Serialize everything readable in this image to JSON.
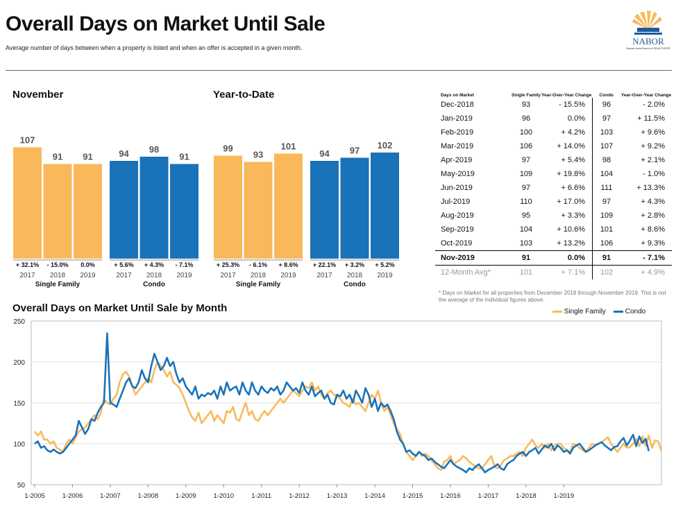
{
  "header": {
    "title": "Overall Days on Market Until Sale",
    "subtitle": "Average number of days between when a property is listed and when an offer is accepted in a given month.",
    "logo_text": "NABOR",
    "logo_sub": "Naples Area Board of REALTORS®"
  },
  "sections": {
    "november": "November",
    "ytd": "Year-to-Date",
    "monthly": "Overall Days on Market Until Sale by Month"
  },
  "colors": {
    "single_family": "#F9B95A",
    "condo": "#1A72B8"
  },
  "chart_data": [
    {
      "type": "bar",
      "title": "November",
      "groups": [
        {
          "name": "Single Family",
          "categories": [
            "2017",
            "2018",
            "2019"
          ],
          "values": [
            107,
            91,
            91
          ],
          "changes": [
            "+ 32.1%",
            "- 15.0%",
            "0.0%"
          ]
        },
        {
          "name": "Condo",
          "categories": [
            "2017",
            "2018",
            "2019"
          ],
          "values": [
            94,
            98,
            91
          ],
          "changes": [
            "+ 5.6%",
            "+ 4.3%",
            "- 7.1%"
          ]
        }
      ]
    },
    {
      "type": "bar",
      "title": "Year-to-Date",
      "groups": [
        {
          "name": "Single Family",
          "categories": [
            "2017",
            "2018",
            "2019"
          ],
          "values": [
            99,
            93,
            101
          ],
          "changes": [
            "+ 25.3%",
            "- 6.1%",
            "+ 8.6%"
          ]
        },
        {
          "name": "Condo",
          "categories": [
            "2017",
            "2018",
            "2019"
          ],
          "values": [
            94,
            97,
            102
          ],
          "changes": [
            "+ 22.1%",
            "+ 3.2%",
            "+ 5.2%"
          ]
        }
      ]
    },
    {
      "type": "table",
      "columns": [
        "Days on Market",
        "Single Family",
        "Year-Over-Year Change",
        "Condo",
        "Year-Over-Year Change"
      ],
      "rows": [
        [
          "Dec-2018",
          "93",
          "- 15.5%",
          "96",
          "- 2.0%"
        ],
        [
          "Jan-2019",
          "96",
          "0.0%",
          "97",
          "+ 11.5%"
        ],
        [
          "Feb-2019",
          "100",
          "+ 4.2%",
          "103",
          "+ 9.6%"
        ],
        [
          "Mar-2019",
          "106",
          "+ 14.0%",
          "107",
          "+ 9.2%"
        ],
        [
          "Apr-2019",
          "97",
          "+ 5.4%",
          "98",
          "+ 2.1%"
        ],
        [
          "May-2019",
          "109",
          "+ 19.8%",
          "104",
          "- 1.0%"
        ],
        [
          "Jun-2019",
          "97",
          "+ 6.6%",
          "111",
          "+ 13.3%"
        ],
        [
          "Jul-2019",
          "110",
          "+ 17.0%",
          "97",
          "+ 4.3%"
        ],
        [
          "Aug-2019",
          "95",
          "+ 3.3%",
          "109",
          "+ 2.8%"
        ],
        [
          "Sep-2019",
          "104",
          "+ 10.6%",
          "101",
          "+ 8.6%"
        ],
        [
          "Oct-2019",
          "103",
          "+ 13.2%",
          "106",
          "+ 9.3%"
        ]
      ],
      "current": [
        "Nov-2019",
        "91",
        "0.0%",
        "91",
        "- 7.1%"
      ],
      "average": [
        "12-Month Avg*",
        "101",
        "+ 7.1%",
        "102",
        "+ 4.9%"
      ],
      "footnote": "* Days on Market for all properties from December 2018 through November 2019. This is not the average of the individual figures above."
    },
    {
      "type": "line",
      "title": "Overall Days on Market Until Sale by Month",
      "ylim": [
        50,
        250
      ],
      "yticks": [
        50,
        100,
        150,
        200,
        250
      ],
      "xticks": [
        "1-2005",
        "1-2006",
        "1-2007",
        "1-2008",
        "1-2009",
        "1-2010",
        "1-2011",
        "1-2012",
        "1-2013",
        "1-2014",
        "1-2015",
        "1-2016",
        "1-2017",
        "1-2018",
        "1-2019"
      ],
      "series": [
        {
          "name": "Single Family",
          "values": [
            115,
            110,
            115,
            105,
            105,
            100,
            103,
            95,
            93,
            90,
            100,
            105,
            100,
            108,
            115,
            118,
            120,
            125,
            130,
            135,
            130,
            138,
            155,
            150,
            148,
            155,
            160,
            175,
            185,
            188,
            182,
            170,
            160,
            165,
            170,
            175,
            180,
            175,
            190,
            200,
            195,
            190,
            182,
            188,
            175,
            172,
            168,
            160,
            150,
            140,
            132,
            128,
            138,
            125,
            130,
            135,
            140,
            128,
            135,
            130,
            125,
            140,
            138,
            145,
            130,
            128,
            140,
            150,
            135,
            140,
            130,
            128,
            135,
            140,
            135,
            140,
            145,
            150,
            155,
            150,
            155,
            160,
            165,
            162,
            158,
            165,
            170,
            168,
            175,
            165,
            170,
            160,
            155,
            162,
            165,
            160,
            158,
            155,
            150,
            148,
            145,
            155,
            148,
            150,
            145,
            140,
            150,
            160,
            155,
            165,
            150,
            140,
            145,
            135,
            125,
            118,
            112,
            100,
            90,
            85,
            80,
            85,
            90,
            85,
            88,
            85,
            80,
            75,
            70,
            68,
            78,
            80,
            85,
            75,
            78,
            80,
            85,
            82,
            78,
            75,
            72,
            70,
            70,
            75,
            80,
            85,
            72,
            70,
            74,
            80,
            82,
            85,
            85,
            88,
            90,
            85,
            95,
            100,
            105,
            98,
            95,
            100,
            95,
            100,
            92,
            98,
            100,
            100,
            95,
            92,
            90,
            100,
            98,
            95,
            92,
            90,
            95,
            100,
            98,
            100,
            102,
            105,
            108,
            100,
            95,
            90,
            95,
            100,
            95,
            96,
            100,
            106,
            97,
            109,
            97,
            110,
            95,
            104,
            103,
            91
          ]
        },
        {
          "name": "Condo",
          "values": [
            100,
            103,
            95,
            97,
            92,
            90,
            93,
            90,
            88,
            90,
            95,
            100,
            105,
            110,
            128,
            120,
            112,
            118,
            130,
            128,
            138,
            145,
            150,
            235,
            150,
            148,
            145,
            155,
            165,
            175,
            180,
            170,
            168,
            175,
            190,
            180,
            175,
            195,
            210,
            200,
            190,
            195,
            205,
            195,
            200,
            185,
            175,
            180,
            170,
            165,
            160,
            170,
            155,
            160,
            158,
            162,
            160,
            165,
            155,
            170,
            160,
            175,
            165,
            168,
            170,
            160,
            175,
            165,
            160,
            175,
            165,
            160,
            170,
            165,
            162,
            168,
            165,
            170,
            160,
            165,
            175,
            170,
            165,
            168,
            162,
            175,
            165,
            160,
            170,
            158,
            162,
            165,
            155,
            160,
            150,
            148,
            160,
            158,
            165,
            155,
            160,
            150,
            165,
            158,
            150,
            168,
            160,
            145,
            155,
            140,
            150,
            145,
            148,
            140,
            130,
            115,
            105,
            100,
            90,
            92,
            88,
            85,
            90,
            87,
            85,
            80,
            82,
            78,
            75,
            72,
            70,
            75,
            80,
            75,
            72,
            70,
            68,
            65,
            70,
            68,
            72,
            75,
            70,
            65,
            68,
            70,
            72,
            75,
            70,
            68,
            75,
            78,
            80,
            85,
            88,
            90,
            85,
            90,
            92,
            95,
            88,
            93,
            98,
            95,
            100,
            92,
            98,
            95,
            90,
            92,
            88,
            95,
            98,
            100,
            95,
            90,
            92,
            95,
            98,
            100,
            102,
            98,
            95,
            92,
            96,
            97,
            103,
            107,
            98,
            104,
            111,
            97,
            109,
            101,
            106,
            91
          ]
        }
      ]
    }
  ]
}
